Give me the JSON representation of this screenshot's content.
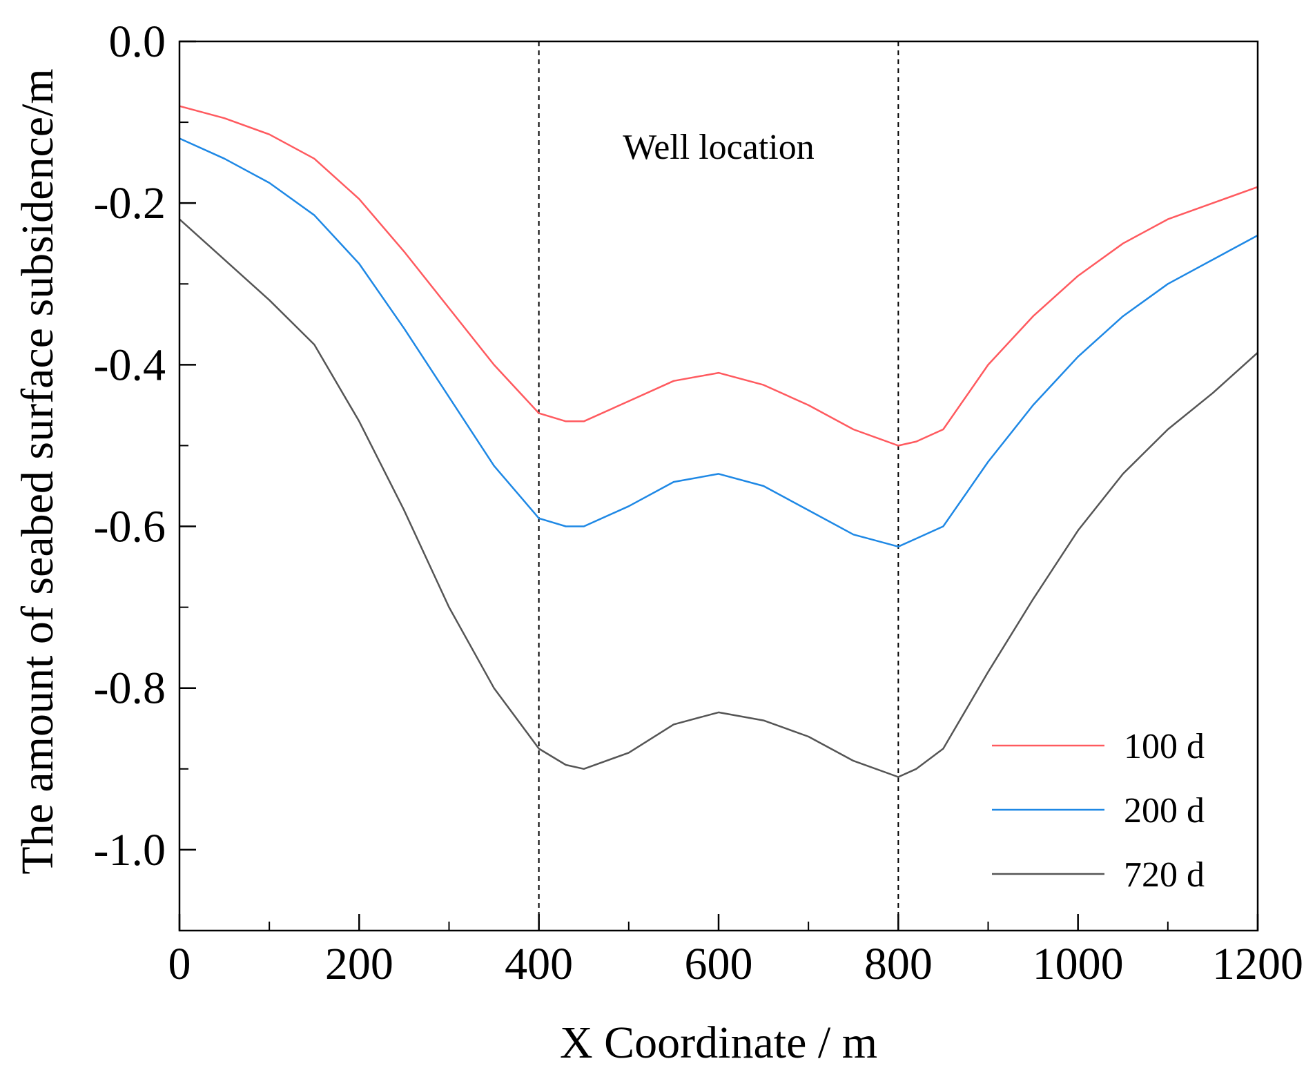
{
  "chart_data": {
    "type": "line",
    "title": "",
    "xlabel": "X Coordinate / m",
    "ylabel": "The amount of seabed surface subsidence/m",
    "xlim": [
      0,
      1200
    ],
    "ylim": [
      -1.1,
      0.0
    ],
    "x_ticks": [
      0,
      200,
      400,
      600,
      800,
      1000,
      1200
    ],
    "x_tick_labels": [
      "0",
      "200",
      "400",
      "600",
      "800",
      "1000",
      "1200"
    ],
    "x_minor_ticks": [
      100,
      300,
      500,
      700,
      900,
      1100
    ],
    "y_ticks": [
      0.0,
      -0.2,
      -0.4,
      -0.6,
      -0.8,
      -1.0
    ],
    "y_tick_labels": [
      "0.0",
      "-0.2",
      "-0.4",
      "-0.6",
      "-0.8",
      "-1.0"
    ],
    "y_minor_ticks": [
      -0.1,
      -0.3,
      -0.5,
      -0.7,
      -0.9
    ],
    "grid": false,
    "legend_position": "bottom-right",
    "annotation": {
      "text": "Well location",
      "x": 600,
      "y": -0.13
    },
    "reference_lines": [
      {
        "x": 400,
        "style": "dashed"
      },
      {
        "x": 800,
        "style": "dashed"
      }
    ],
    "series": [
      {
        "name": "100 d",
        "color": "#ff5a5f",
        "x": [
          0,
          50,
          100,
          150,
          200,
          250,
          300,
          350,
          400,
          430,
          450,
          500,
          550,
          600,
          650,
          700,
          750,
          800,
          820,
          850,
          900,
          950,
          1000,
          1050,
          1100,
          1150,
          1200
        ],
        "y": [
          -0.08,
          -0.095,
          -0.115,
          -0.145,
          -0.195,
          -0.26,
          -0.33,
          -0.4,
          -0.46,
          -0.47,
          -0.47,
          -0.445,
          -0.42,
          -0.41,
          -0.425,
          -0.45,
          -0.48,
          -0.5,
          -0.495,
          -0.48,
          -0.4,
          -0.34,
          -0.29,
          -0.25,
          -0.22,
          -0.2,
          -0.18
        ]
      },
      {
        "name": "200 d",
        "color": "#1e88e5",
        "x": [
          0,
          50,
          100,
          150,
          200,
          250,
          300,
          350,
          400,
          430,
          450,
          500,
          550,
          600,
          650,
          700,
          750,
          800,
          820,
          850,
          900,
          950,
          1000,
          1050,
          1100,
          1150,
          1200
        ],
        "y": [
          -0.12,
          -0.145,
          -0.175,
          -0.215,
          -0.275,
          -0.355,
          -0.44,
          -0.525,
          -0.59,
          -0.6,
          -0.6,
          -0.575,
          -0.545,
          -0.535,
          -0.55,
          -0.58,
          -0.61,
          -0.625,
          -0.615,
          -0.6,
          -0.52,
          -0.45,
          -0.39,
          -0.34,
          -0.3,
          -0.27,
          -0.24
        ]
      },
      {
        "name": "720 d",
        "color": "#555555",
        "x": [
          0,
          50,
          100,
          150,
          200,
          250,
          300,
          350,
          400,
          430,
          450,
          500,
          550,
          600,
          650,
          700,
          750,
          800,
          820,
          850,
          900,
          950,
          1000,
          1050,
          1100,
          1150,
          1200
        ],
        "y": [
          -0.22,
          -0.27,
          -0.32,
          -0.375,
          -0.47,
          -0.58,
          -0.7,
          -0.8,
          -0.875,
          -0.895,
          -0.9,
          -0.88,
          -0.845,
          -0.83,
          -0.84,
          -0.86,
          -0.89,
          -0.91,
          -0.9,
          -0.875,
          -0.78,
          -0.69,
          -0.605,
          -0.535,
          -0.48,
          -0.435,
          -0.385
        ]
      }
    ]
  }
}
